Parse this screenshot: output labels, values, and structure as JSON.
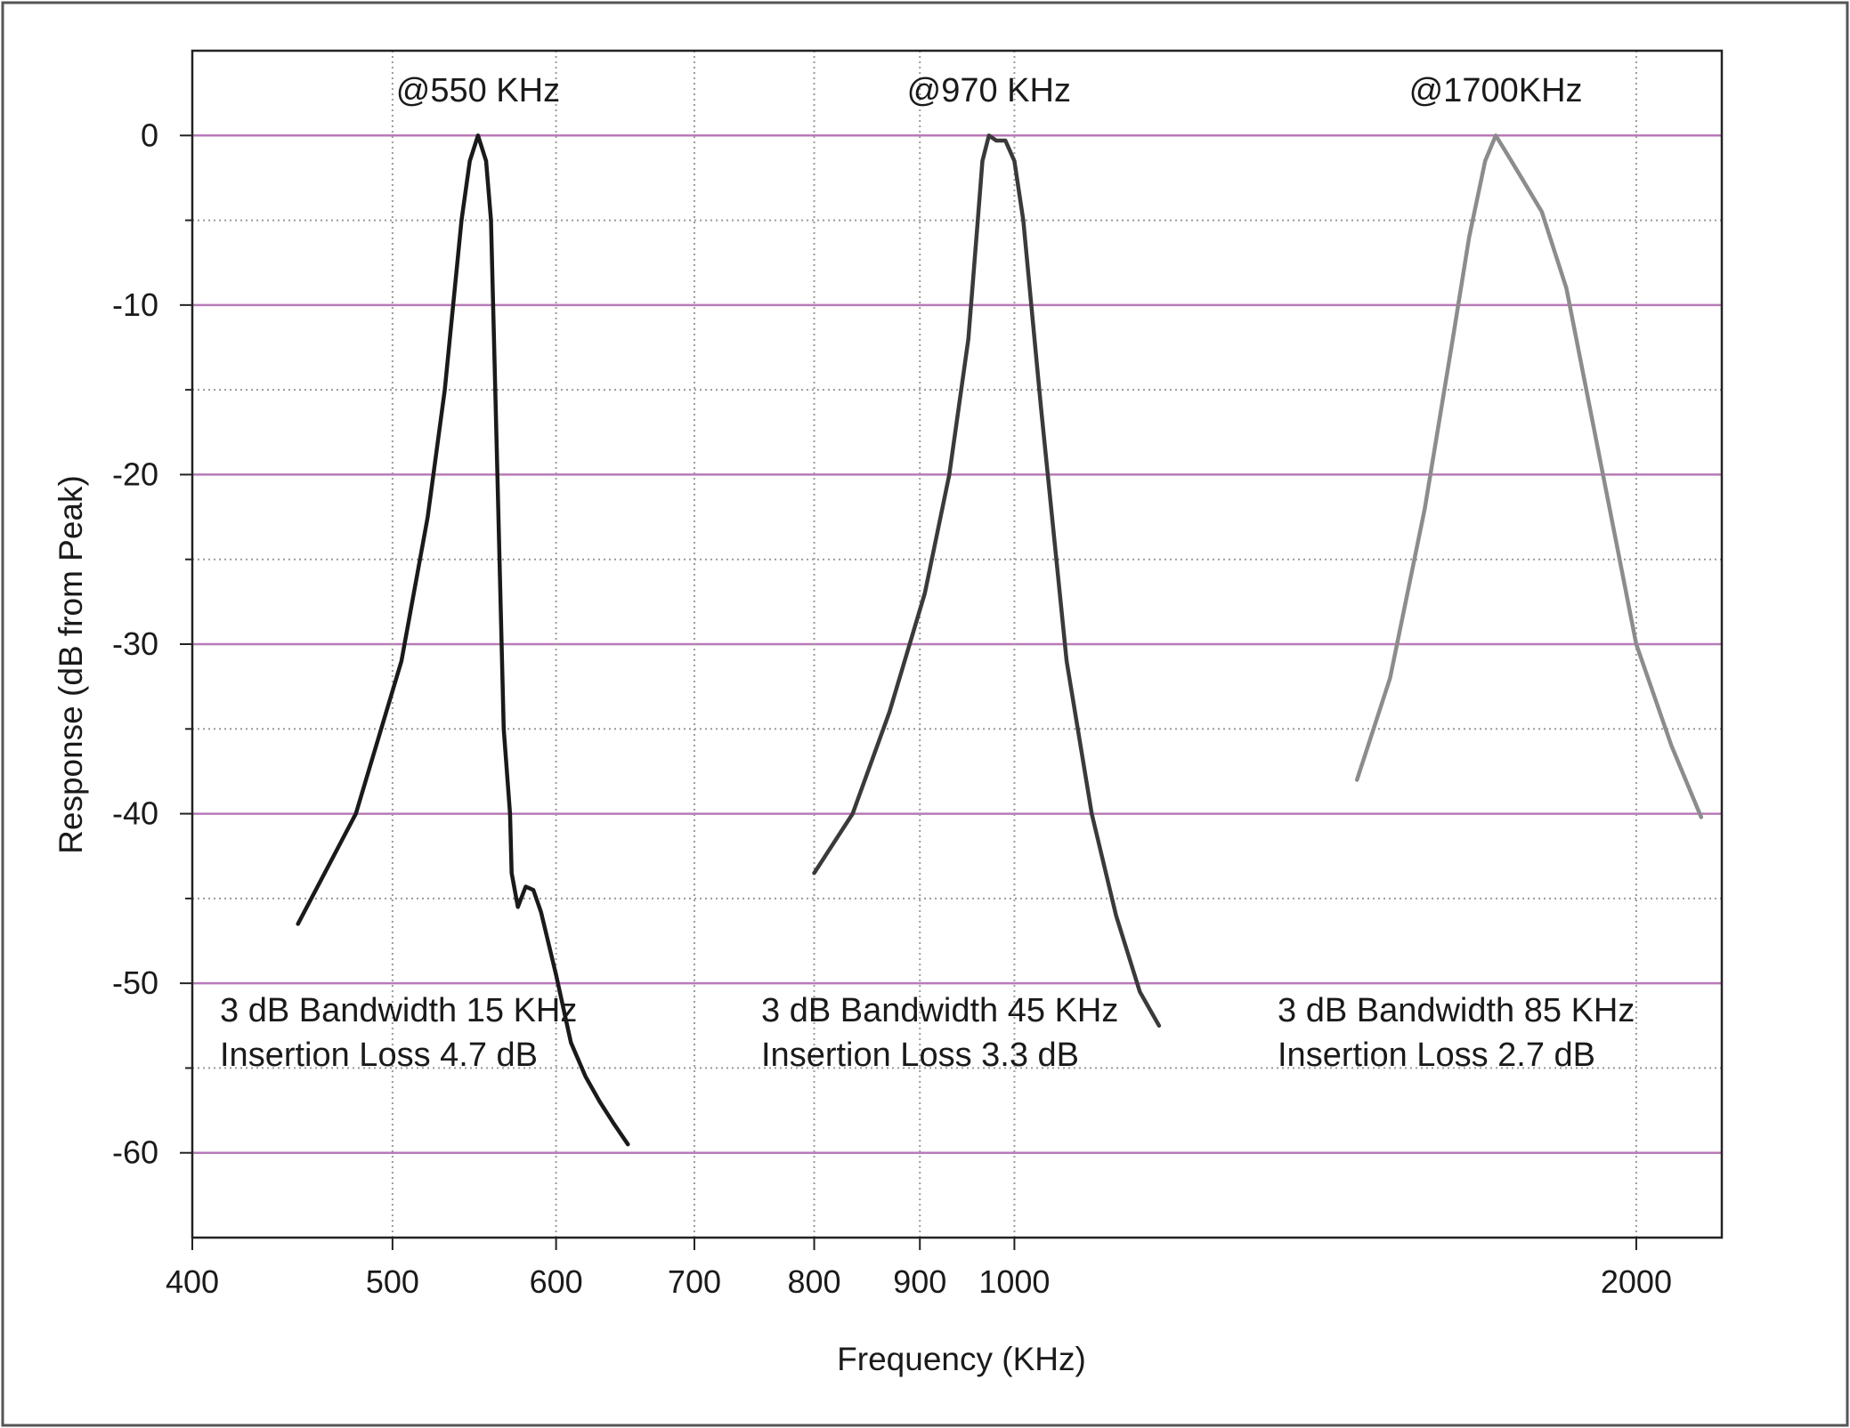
{
  "chart_data": {
    "type": "line",
    "title": "",
    "xlabel": "Frequency (KHz)",
    "ylabel": "Response (dB from Peak)",
    "xscale": "log",
    "xlim": [
      400,
      2200
    ],
    "ylim": [
      -65,
      5
    ],
    "grid": true,
    "legend": "none",
    "x_ticks": [
      {
        "value": 400,
        "label": "400"
      },
      {
        "value": 500,
        "label": "500"
      },
      {
        "value": 600,
        "label": "600"
      },
      {
        "value": 700,
        "label": "700"
      },
      {
        "value": 800,
        "label": "800"
      },
      {
        "value": 900,
        "label": "900"
      },
      {
        "value": 1000,
        "label": "1000"
      },
      {
        "value": 2000,
        "label": "2000"
      }
    ],
    "y_ticks": [
      {
        "value": 0,
        "label": "0"
      },
      {
        "value": -10,
        "label": "-10"
      },
      {
        "value": -20,
        "label": "-20"
      },
      {
        "value": -30,
        "label": "-30"
      },
      {
        "value": -40,
        "label": "-40"
      },
      {
        "value": -50,
        "label": "-50"
      },
      {
        "value": -60,
        "label": "-60"
      }
    ],
    "y_minor_ticks": [
      -5,
      -15,
      -25,
      -35,
      -45,
      -55
    ],
    "series": [
      {
        "peak_label": "@550 KHz",
        "color": "#1a1a1a",
        "bandwidth_text": "3 dB Bandwidth 15 KHz",
        "loss_text": "Insertion Loss 4.7 dB",
        "x": [
          450,
          480,
          505,
          520,
          530,
          540,
          545,
          550,
          555,
          558,
          562,
          566,
          570,
          571,
          575,
          580,
          585,
          590,
          600,
          610,
          620,
          630,
          640,
          650
        ],
        "y": [
          -46.5,
          -40,
          -31,
          -22.5,
          -15,
          -5,
          -1.5,
          0,
          -1.5,
          -5,
          -20,
          -35,
          -40,
          -43.5,
          -45.5,
          -44.3,
          -44.5,
          -45.8,
          -49.5,
          -53.5,
          -55.5,
          -57,
          -58.3,
          -59.5
        ]
      },
      {
        "peak_label": "@970 KHz",
        "color": "#3a3a3a",
        "bandwidth_text": "3 dB Bandwidth 45 KHz",
        "loss_text": "Insertion Loss 3.3 dB",
        "x": [
          800,
          835,
          870,
          905,
          930,
          950,
          960,
          965,
          972,
          980,
          990,
          1000,
          1010,
          1030,
          1060,
          1090,
          1120,
          1150,
          1175
        ],
        "y": [
          -43.5,
          -40,
          -34,
          -27,
          -20,
          -12,
          -5,
          -1.5,
          0,
          -0.3,
          -0.3,
          -1.5,
          -5,
          -16,
          -31,
          -40,
          -46,
          -50.5,
          -52.5
        ]
      },
      {
        "peak_label": "@1700KHz",
        "color": "#8c8c8c",
        "bandwidth_text": "3 dB Bandwidth 85 KHz",
        "loss_text": "Insertion Loss 2.7 dB",
        "x": [
          1465,
          1520,
          1580,
          1630,
          1660,
          1690,
          1710,
          1730,
          1760,
          1800,
          1850,
          1920,
          2000,
          2080,
          2150
        ],
        "y": [
          -38,
          -32,
          -22,
          -12,
          -6,
          -1.5,
          0,
          -1,
          -2.5,
          -4.5,
          -9,
          -19,
          -30,
          -36,
          -40.2
        ]
      }
    ]
  }
}
